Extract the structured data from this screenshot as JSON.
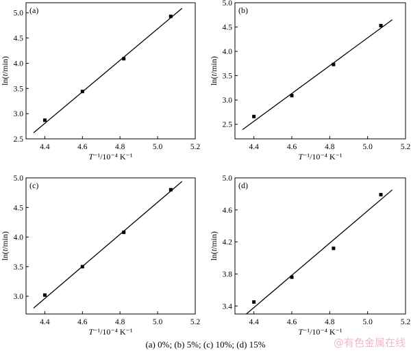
{
  "caption": "(a) 0%; (b) 5%; (c) 10%;  (d) 15%",
  "watermark": "@有色金属在线",
  "chart_data": [
    {
      "type": "scatter",
      "panel_label": "(a)",
      "xlabel": "T⁻¹/10⁻⁴ K⁻¹",
      "ylabel": "ln(t/min)",
      "xlim": [
        4.3,
        5.2
      ],
      "ylim": [
        2.5,
        5.2
      ],
      "xticks": [
        "4.4",
        "4.6",
        "4.8",
        "5.0",
        "5.2"
      ],
      "yticks": [
        "2.5",
        "3.0",
        "3.5",
        "4.0",
        "4.5",
        "5.0"
      ],
      "grid": false,
      "points": [
        [
          4.4,
          2.87
        ],
        [
          4.6,
          3.44
        ],
        [
          4.82,
          4.09
        ],
        [
          5.07,
          4.93
        ]
      ],
      "fit_line": [
        [
          4.34,
          2.62
        ],
        [
          5.13,
          5.09
        ]
      ]
    },
    {
      "type": "scatter",
      "panel_label": "(b)",
      "xlabel": "T⁻¹/10⁻⁴ K⁻¹",
      "ylabel": "ln(t/min)",
      "xlim": [
        4.3,
        5.2
      ],
      "ylim": [
        2.2,
        5.0
      ],
      "xticks": [
        "4.4",
        "4.6",
        "4.8",
        "5.0",
        "5.2"
      ],
      "yticks": [
        "2.5",
        "3.0",
        "3.5",
        "4.0",
        "4.5",
        "5.0"
      ],
      "grid": false,
      "points": [
        [
          4.4,
          2.66
        ],
        [
          4.6,
          3.09
        ],
        [
          4.82,
          3.73
        ],
        [
          5.07,
          4.53
        ]
      ],
      "fit_line": [
        [
          4.34,
          2.39
        ],
        [
          5.13,
          4.65
        ]
      ]
    },
    {
      "type": "scatter",
      "panel_label": "(c)",
      "xlabel": "T⁻¹/10⁻⁴ K⁻¹",
      "ylabel": "ln(t/min)",
      "xlim": [
        4.3,
        5.2
      ],
      "ylim": [
        2.7,
        5.0
      ],
      "xticks": [
        "4.4",
        "4.6",
        "4.8",
        "5.0",
        "5.2"
      ],
      "yticks": [
        "3.0",
        "3.5",
        "4.0",
        "4.5",
        "5.0"
      ],
      "grid": false,
      "points": [
        [
          4.4,
          3.02
        ],
        [
          4.6,
          3.5
        ],
        [
          4.82,
          4.08
        ],
        [
          5.07,
          4.8
        ]
      ],
      "fit_line": [
        [
          4.34,
          2.8
        ],
        [
          5.13,
          4.94
        ]
      ]
    },
    {
      "type": "scatter",
      "panel_label": "(d)",
      "xlabel": "T⁻¹/10⁻⁴ K⁻¹",
      "ylabel": "ln(t/min)",
      "xlim": [
        4.3,
        5.2
      ],
      "ylim": [
        3.3,
        5.0
      ],
      "xticks": [
        "4.4",
        "4.6",
        "4.8",
        "5.0",
        "5.2"
      ],
      "yticks": [
        "3.4",
        "3.8",
        "4.2",
        "4.6",
        "5.0"
      ],
      "grid": false,
      "points": [
        [
          4.4,
          3.45
        ],
        [
          4.6,
          3.76
        ],
        [
          4.82,
          4.12
        ],
        [
          5.07,
          4.79
        ]
      ],
      "fit_line": [
        [
          4.36,
          3.3
        ],
        [
          5.13,
          4.85
        ]
      ]
    }
  ]
}
